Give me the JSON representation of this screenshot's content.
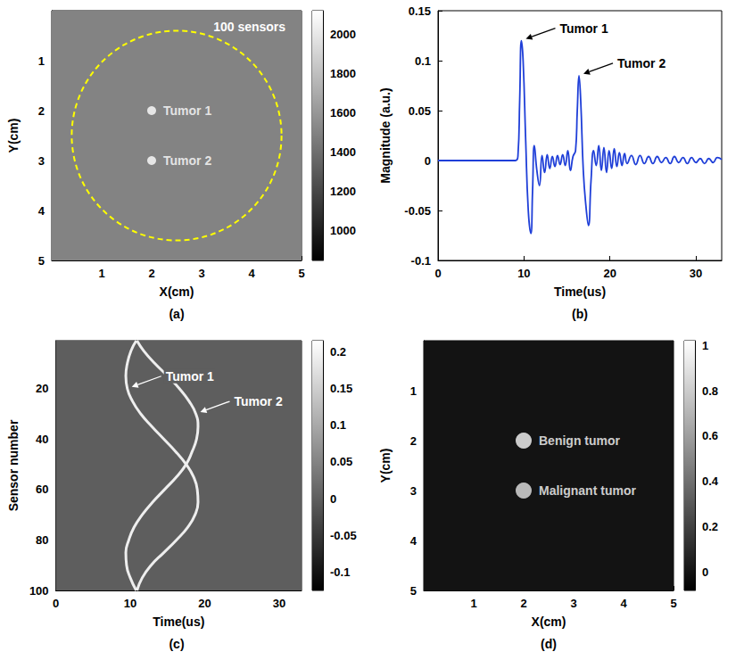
{
  "chart_data": [
    {
      "type": "image",
      "caption": "(a)",
      "xlabel": "X(cm)",
      "ylabel": "Y(cm)",
      "xlim": [
        0,
        5
      ],
      "ylim": [
        0,
        5
      ],
      "xticks": [
        1,
        2,
        3,
        4,
        5
      ],
      "yticks": [
        1,
        2,
        3,
        4,
        5
      ],
      "background_value": 1500,
      "colorbar": {
        "range": [
          850,
          2120
        ],
        "ticks": [
          1000,
          1200,
          1400,
          1600,
          1800,
          2000
        ]
      },
      "ring": {
        "center": [
          2.5,
          2.5
        ],
        "radius": 2.1,
        "label": "100 sensors",
        "color": "#ffff00",
        "line_style": "dashed"
      },
      "points": [
        {
          "name": "Tumor 1",
          "x": 2,
          "y": 2,
          "color": "#ffffff"
        },
        {
          "name": "Tumor 2",
          "x": 2,
          "y": 3,
          "color": "#ffffff"
        }
      ]
    },
    {
      "type": "line",
      "caption": "(b)",
      "xlabel": "Time(us)",
      "ylabel": "Magnitude (a.u.)",
      "xlim": [
        0,
        33
      ],
      "ylim": [
        -0.1,
        0.15
      ],
      "xticks": [
        0,
        10,
        20,
        30
      ],
      "yticks": [
        -0.1,
        -0.05,
        0,
        0.05,
        0.1,
        0.15
      ],
      "color": "#1f3fd8",
      "x": [
        0,
        9,
        9.3,
        9.5,
        9.7,
        9.9,
        10.2,
        10.5,
        10.8,
        11.0,
        11.2,
        11.5,
        11.8,
        12.1,
        12.4,
        12.7,
        13.0,
        13.3,
        13.6,
        13.9,
        14.2,
        14.5,
        14.8,
        15.1,
        15.4,
        15.7,
        16.0,
        16.2,
        16.4,
        16.6,
        16.9,
        17.2,
        17.5,
        17.8,
        18.1,
        18.4,
        18.7,
        19.0,
        19.3,
        19.6,
        19.9,
        20.2,
        20.5,
        20.8,
        21.1,
        21.4,
        21.7,
        22.0,
        22.5,
        23,
        23.5,
        24,
        24.5,
        25,
        25.5,
        26,
        26.5,
        27,
        27.5,
        28,
        28.5,
        29,
        29.5,
        30,
        30.5,
        31,
        31.5,
        32,
        32.5,
        33
      ],
      "values": [
        0,
        0,
        0.005,
        0.06,
        0.12,
        0.1,
        0.02,
        -0.05,
        -0.073,
        -0.03,
        0.015,
        -0.01,
        -0.025,
        0.005,
        -0.012,
        0.006,
        -0.008,
        0.004,
        -0.006,
        0.005,
        -0.004,
        0.006,
        -0.005,
        0.01,
        -0.01,
        0.004,
        0.01,
        0.05,
        0.085,
        0.06,
        -0.01,
        -0.045,
        -0.065,
        -0.02,
        0.01,
        -0.005,
        0.015,
        -0.01,
        0.013,
        -0.012,
        0.01,
        -0.008,
        0.012,
        -0.006,
        0.008,
        -0.005,
        0.007,
        -0.003,
        0.005,
        -0.004,
        0.005,
        -0.003,
        0.004,
        -0.003,
        0.004,
        -0.002,
        0.003,
        -0.003,
        0.004,
        -0.002,
        0.003,
        -0.003,
        0.003,
        -0.002,
        0.002,
        -0.003,
        0.002,
        -0.002,
        0.003,
        0.001
      ],
      "annotations": [
        {
          "text": "Tumor 1",
          "x": 9.7,
          "y": 0.12
        },
        {
          "text": "Tumor 2",
          "x": 16.4,
          "y": 0.085
        }
      ]
    },
    {
      "type": "image",
      "caption": "(c)",
      "xlabel": "Time(us)",
      "ylabel": "Sensor number",
      "xlim": [
        0,
        33
      ],
      "ylim": [
        1,
        100
      ],
      "xticks": [
        0,
        10,
        20,
        30
      ],
      "yticks": [
        20,
        40,
        60,
        80,
        100
      ],
      "background_value": 0,
      "colorbar": {
        "range": [
          -0.125,
          0.215
        ],
        "ticks": [
          -0.1,
          -0.05,
          0,
          0.05,
          0.1,
          0.15,
          0.2
        ]
      },
      "series": [
        {
          "color": "#eeeeee",
          "x": [
            10.8,
            10.1,
            9.6,
            9.4,
            9.6,
            10.3,
            11.4,
            12.9,
            14.5,
            16.1,
            17.5,
            18.5,
            19,
            19.1,
            18.7,
            17.7,
            16.2,
            14.5,
            12.8,
            11.6,
            10.9
          ],
          "values": [
            1,
            5,
            10,
            15,
            20,
            25,
            30,
            35,
            40,
            45,
            50,
            55,
            60,
            65,
            70,
            75,
            80,
            85,
            90,
            95,
            100
          ]
        },
        {
          "color": "#eeeeee",
          "x": [
            10.9,
            11.8,
            13.3,
            15,
            16.6,
            17.9,
            18.8,
            19.1,
            18.9,
            18.3,
            17.5,
            16.2,
            14.6,
            13,
            11.6,
            10.5,
            9.8,
            9.4,
            9.5,
            10,
            10.8
          ],
          "values": [
            1,
            5,
            10,
            15,
            20,
            25,
            30,
            35,
            40,
            45,
            50,
            55,
            60,
            65,
            70,
            75,
            80,
            85,
            90,
            95,
            100
          ]
        }
      ],
      "annotations": [
        {
          "text": "Tumor 1",
          "x": 9.6,
          "y": 20
        },
        {
          "text": "Tumor 2",
          "x": 18.8,
          "y": 30
        }
      ]
    },
    {
      "type": "image",
      "caption": "(d)",
      "xlabel": "X(cm)",
      "ylabel": "Y(cm)",
      "xlim": [
        0,
        5
      ],
      "ylim": [
        0,
        5
      ],
      "xticks": [
        1,
        2,
        3,
        4,
        5
      ],
      "yticks": [
        1,
        2,
        3,
        4,
        5
      ],
      "background_value": 0,
      "colorbar": {
        "range": [
          -0.08,
          1.02
        ],
        "ticks": [
          0,
          0.2,
          0.4,
          0.6,
          0.8,
          1
        ]
      },
      "points": [
        {
          "name": "Benign tumor",
          "x": 2,
          "y": 2,
          "value": 1
        },
        {
          "name": "Malignant tumor",
          "x": 2,
          "y": 3,
          "value": 0.9
        }
      ]
    }
  ]
}
